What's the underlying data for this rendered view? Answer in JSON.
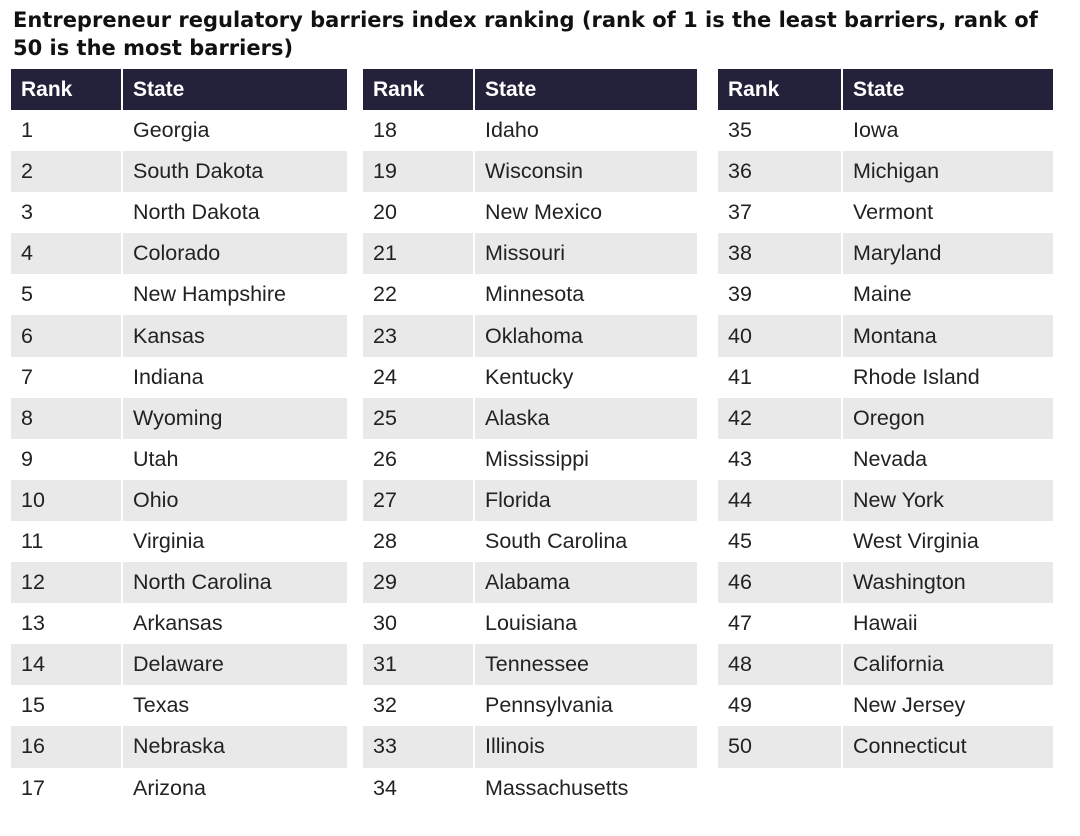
{
  "title": "Entrepreneur regulatory barriers index ranking (rank of 1 is the least barriers, rank of 50 is the most barriers)",
  "colors": {
    "header_bg": "#24223a",
    "header_text": "#ffffff",
    "stripe": "#e9e9e9"
  },
  "tables": [
    {
      "headers": {
        "rank": "Rank",
        "state": "State"
      },
      "rows": [
        {
          "rank": "1",
          "state": "Georgia"
        },
        {
          "rank": "2",
          "state": "South Dakota"
        },
        {
          "rank": "3",
          "state": "North Dakota"
        },
        {
          "rank": "4",
          "state": "Colorado"
        },
        {
          "rank": "5",
          "state": "New Hampshire"
        },
        {
          "rank": "6",
          "state": "Kansas"
        },
        {
          "rank": "7",
          "state": "Indiana"
        },
        {
          "rank": "8",
          "state": "Wyoming"
        },
        {
          "rank": "9",
          "state": "Utah"
        },
        {
          "rank": "10",
          "state": "Ohio"
        },
        {
          "rank": "11",
          "state": "Virginia"
        },
        {
          "rank": "12",
          "state": "North Carolina"
        },
        {
          "rank": "13",
          "state": "Arkansas"
        },
        {
          "rank": "14",
          "state": "Delaware"
        },
        {
          "rank": "15",
          "state": "Texas"
        },
        {
          "rank": "16",
          "state": "Nebraska"
        },
        {
          "rank": "17",
          "state": "Arizona"
        }
      ]
    },
    {
      "headers": {
        "rank": "Rank",
        "state": "State"
      },
      "rows": [
        {
          "rank": "18",
          "state": "Idaho"
        },
        {
          "rank": "19",
          "state": "Wisconsin"
        },
        {
          "rank": "20",
          "state": "New Mexico"
        },
        {
          "rank": "21",
          "state": "Missouri"
        },
        {
          "rank": "22",
          "state": "Minnesota"
        },
        {
          "rank": "23",
          "state": "Oklahoma"
        },
        {
          "rank": "24",
          "state": "Kentucky"
        },
        {
          "rank": "25",
          "state": "Alaska"
        },
        {
          "rank": "26",
          "state": "Mississippi"
        },
        {
          "rank": "27",
          "state": "Florida"
        },
        {
          "rank": "28",
          "state": "South Carolina"
        },
        {
          "rank": "29",
          "state": "Alabama"
        },
        {
          "rank": "30",
          "state": "Louisiana"
        },
        {
          "rank": "31",
          "state": "Tennessee"
        },
        {
          "rank": "32",
          "state": "Pennsylvania"
        },
        {
          "rank": "33",
          "state": "Illinois"
        },
        {
          "rank": "34",
          "state": "Massachusetts"
        }
      ]
    },
    {
      "headers": {
        "rank": "Rank",
        "state": "State"
      },
      "rows": [
        {
          "rank": "35",
          "state": "Iowa"
        },
        {
          "rank": "36",
          "state": "Michigan"
        },
        {
          "rank": "37",
          "state": "Vermont"
        },
        {
          "rank": "38",
          "state": "Maryland"
        },
        {
          "rank": "39",
          "state": "Maine"
        },
        {
          "rank": "40",
          "state": "Montana"
        },
        {
          "rank": "41",
          "state": "Rhode Island"
        },
        {
          "rank": "42",
          "state": "Oregon"
        },
        {
          "rank": "43",
          "state": "Nevada"
        },
        {
          "rank": "44",
          "state": "New York"
        },
        {
          "rank": "45",
          "state": "West Virginia"
        },
        {
          "rank": "46",
          "state": "Washington"
        },
        {
          "rank": "47",
          "state": "Hawaii"
        },
        {
          "rank": "48",
          "state": "California"
        },
        {
          "rank": "49",
          "state": "New Jersey"
        },
        {
          "rank": "50",
          "state": "Connecticut"
        }
      ]
    }
  ]
}
